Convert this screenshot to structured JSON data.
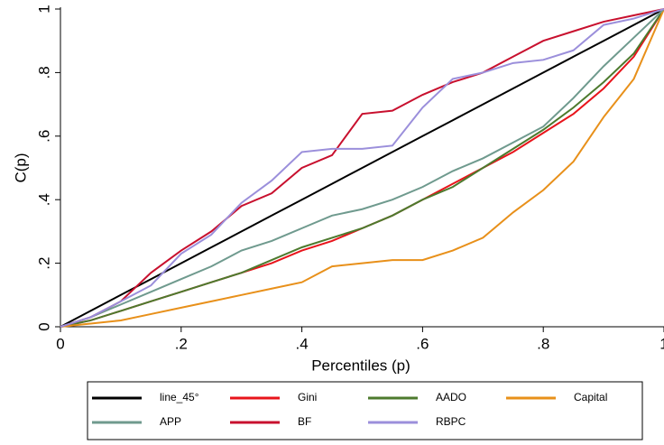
{
  "chart_data": {
    "type": "line",
    "x_label": "Percentiles (p)",
    "y_label": "C(p)",
    "xlim": [
      0,
      1
    ],
    "ylim": [
      0,
      1
    ],
    "xticks": [
      0,
      {
        "value": 0.2,
        "label": ".2"
      },
      {
        "value": 0.4,
        "label": ".4"
      },
      {
        "value": 0.6,
        "label": ".6"
      },
      {
        "value": 0.8,
        "label": ".8"
      },
      1
    ],
    "yticks": [
      0,
      {
        "value": 0.2,
        "label": ".2"
      },
      {
        "value": 0.4,
        "label": ".4"
      },
      {
        "value": 0.6,
        "label": ".6"
      },
      {
        "value": 0.8,
        "label": ".8"
      },
      1
    ],
    "x": [
      0,
      0.05,
      0.1,
      0.15,
      0.2,
      0.25,
      0.3,
      0.35,
      0.4,
      0.45,
      0.5,
      0.55,
      0.6,
      0.65,
      0.7,
      0.75,
      0.8,
      0.85,
      0.9,
      0.95,
      1
    ],
    "series": [
      {
        "name": "line_45°",
        "color": "#000000",
        "values": [
          0,
          0.05,
          0.1,
          0.15,
          0.2,
          0.25,
          0.3,
          0.35,
          0.4,
          0.45,
          0.5,
          0.55,
          0.6,
          0.65,
          0.7,
          0.75,
          0.8,
          0.85,
          0.9,
          0.95,
          1
        ]
      },
      {
        "name": "Gini",
        "color": "#e8141b",
        "values": [
          0,
          0.02,
          0.05,
          0.08,
          0.11,
          0.14,
          0.17,
          0.2,
          0.24,
          0.27,
          0.31,
          0.35,
          0.4,
          0.45,
          0.5,
          0.55,
          0.61,
          0.67,
          0.75,
          0.85,
          1
        ]
      },
      {
        "name": "AADO",
        "color": "#4d7a2e",
        "values": [
          0,
          0.02,
          0.05,
          0.08,
          0.11,
          0.14,
          0.17,
          0.21,
          0.25,
          0.28,
          0.31,
          0.35,
          0.4,
          0.44,
          0.5,
          0.56,
          0.62,
          0.69,
          0.77,
          0.86,
          1
        ]
      },
      {
        "name": "Capital",
        "color": "#e8901a",
        "values": [
          0,
          0.01,
          0.02,
          0.04,
          0.06,
          0.08,
          0.1,
          0.12,
          0.14,
          0.19,
          0.2,
          0.21,
          0.21,
          0.24,
          0.28,
          0.36,
          0.43,
          0.52,
          0.66,
          0.78,
          1
        ]
      },
      {
        "name": "APP",
        "color": "#6f9a8e",
        "values": [
          0,
          0.03,
          0.07,
          0.11,
          0.15,
          0.19,
          0.24,
          0.27,
          0.31,
          0.35,
          0.37,
          0.4,
          0.44,
          0.49,
          0.53,
          0.58,
          0.63,
          0.72,
          0.82,
          0.91,
          1
        ]
      },
      {
        "name": "BF",
        "color": "#c8102e",
        "values": [
          0,
          0.03,
          0.08,
          0.17,
          0.24,
          0.3,
          0.38,
          0.42,
          0.5,
          0.54,
          0.67,
          0.68,
          0.73,
          0.77,
          0.8,
          0.85,
          0.9,
          0.93,
          0.96,
          0.98,
          1
        ]
      },
      {
        "name": "RBPC",
        "color": "#9b8fdb",
        "values": [
          0,
          0.03,
          0.08,
          0.13,
          0.23,
          0.29,
          0.39,
          0.46,
          0.55,
          0.56,
          0.56,
          0.57,
          0.69,
          0.78,
          0.8,
          0.83,
          0.84,
          0.87,
          0.95,
          0.97,
          1
        ]
      }
    ]
  }
}
